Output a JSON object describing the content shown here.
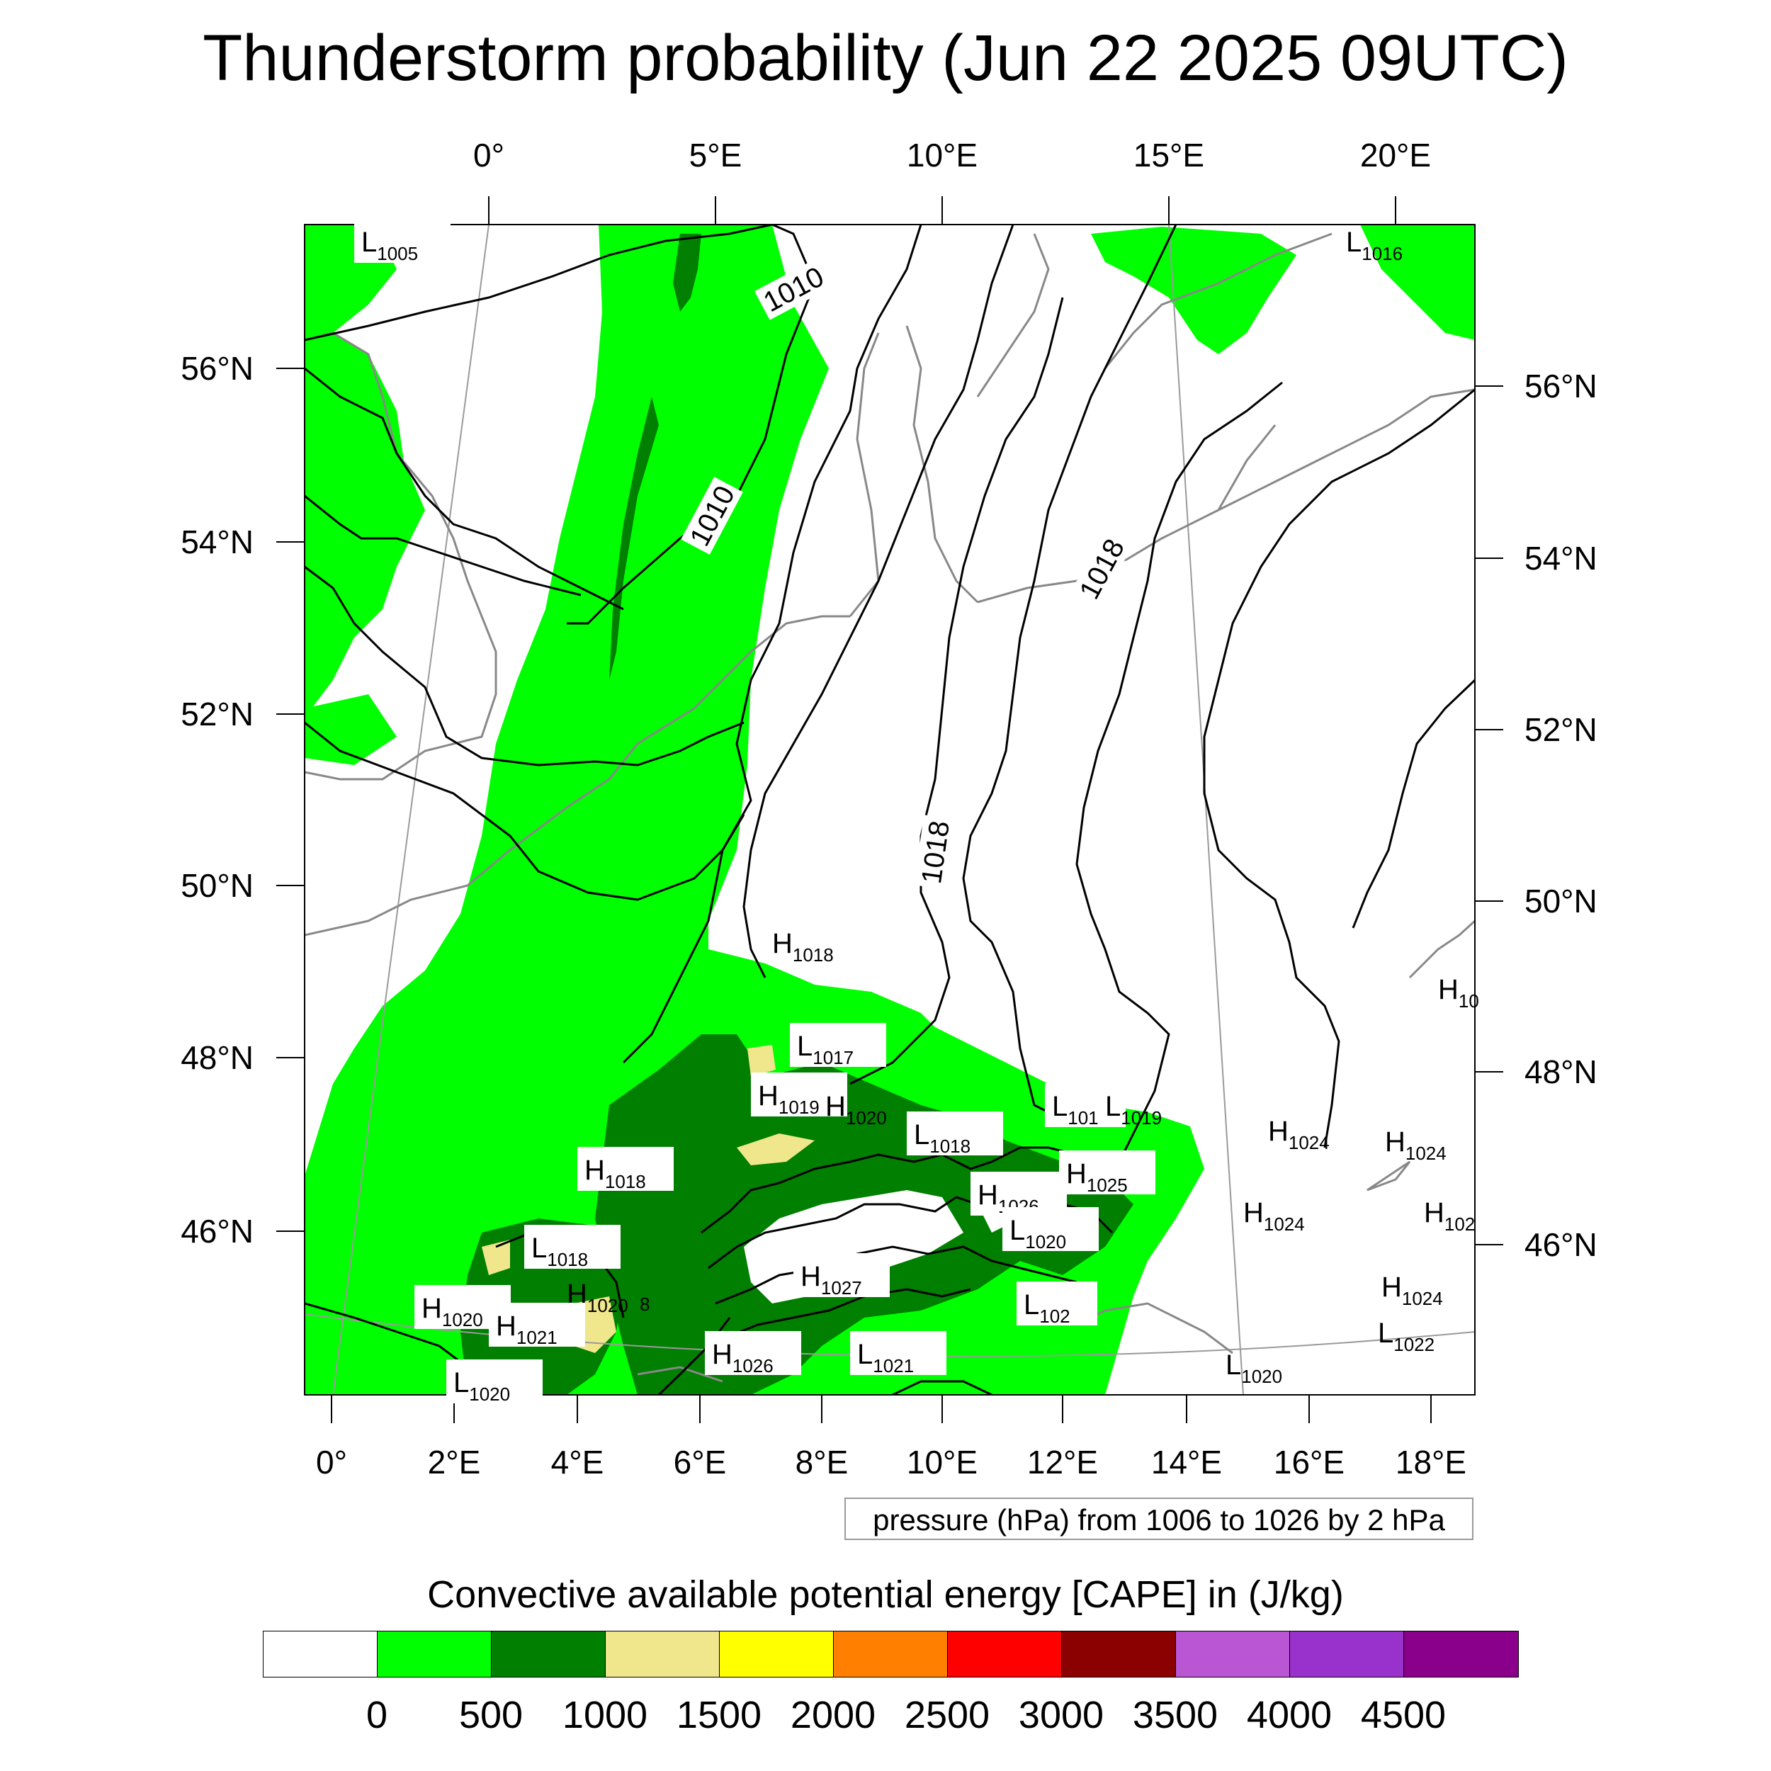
{
  "title": "Thunderstorm probability (Jun 22 2025 09UTC)",
  "map": {
    "top_lon_labels": [
      "0°",
      "5°E",
      "10°E",
      "15°E",
      "20°E"
    ],
    "bottom_lon_labels": [
      "0°",
      "2°E",
      "4°E",
      "6°E",
      "8°E",
      "10°E",
      "12°E",
      "14°E",
      "16°E",
      "18°E"
    ],
    "left_lat_labels": [
      "56°N",
      "54°N",
      "52°N",
      "50°N",
      "48°N",
      "46°N"
    ],
    "right_lat_labels": [
      "56°N",
      "54°N",
      "52°N",
      "50°N",
      "48°N",
      "46°N"
    ],
    "isobar_labels": [
      "1010",
      "1010",
      "1018",
      "1018"
    ],
    "pressure_centers": [
      {
        "letter": "L",
        "value": "1005"
      },
      {
        "letter": "L",
        "value": "1016"
      },
      {
        "letter": "H",
        "value": "1018"
      },
      {
        "letter": "H",
        "value": "10"
      },
      {
        "letter": "L",
        "value": "1017"
      },
      {
        "letter": "H",
        "value": "1019"
      },
      {
        "letter": "H",
        "value": "1020"
      },
      {
        "letter": "L",
        "value": "101"
      },
      {
        "letter": "L",
        "value": "1019"
      },
      {
        "letter": "H",
        "value": "1024"
      },
      {
        "letter": "H",
        "value": "1024"
      },
      {
        "letter": "L",
        "value": "1018"
      },
      {
        "letter": "H",
        "value": "1018"
      },
      {
        "letter": "H",
        "value": "1026"
      },
      {
        "letter": "H",
        "value": "1025"
      },
      {
        "letter": "H",
        "value": "1024"
      },
      {
        "letter": "H",
        "value": "102"
      },
      {
        "letter": "L",
        "value": "1020"
      },
      {
        "letter": "L",
        "value": "1018"
      },
      {
        "letter": "H",
        "value": "1027"
      },
      {
        "letter": "H",
        "value": "1020"
      },
      {
        "letter": "H",
        "value": "1024"
      },
      {
        "letter": "H",
        "value": "1020"
      },
      {
        "letter": "L",
        "value": "102"
      },
      {
        "letter": "H",
        "value": "1021"
      },
      {
        "letter": "L",
        "value": "1022"
      },
      {
        "letter": "H",
        "value": "1026"
      },
      {
        "letter": "L",
        "value": "1021"
      },
      {
        "letter": "L",
        "value": "1020"
      },
      {
        "letter": "L",
        "value": "1020"
      }
    ],
    "fragment_label": "8",
    "colors": {
      "cape_0_500": "#00ff00",
      "cape_500_1000": "#007f00",
      "cape_1000_1500": "#f0e68c",
      "coast": "#888888",
      "isobar": "#000000"
    }
  },
  "pressure_note": "pressure (hPa) from 1006 to 1026 by 2 hPa",
  "colorbar": {
    "title": "Convective available potential energy [CAPE] in (J/kg)",
    "colors": [
      "#ffffff",
      "#00ff00",
      "#007f00",
      "#f0e68c",
      "#ffff00",
      "#ff8000",
      "#ff0000",
      "#8b0000",
      "#ba55d3",
      "#9932cc",
      "#8b008b"
    ],
    "labels": [
      "0",
      "500",
      "1000",
      "1500",
      "2000",
      "2500",
      "3000",
      "3500",
      "4000",
      "4500"
    ]
  }
}
